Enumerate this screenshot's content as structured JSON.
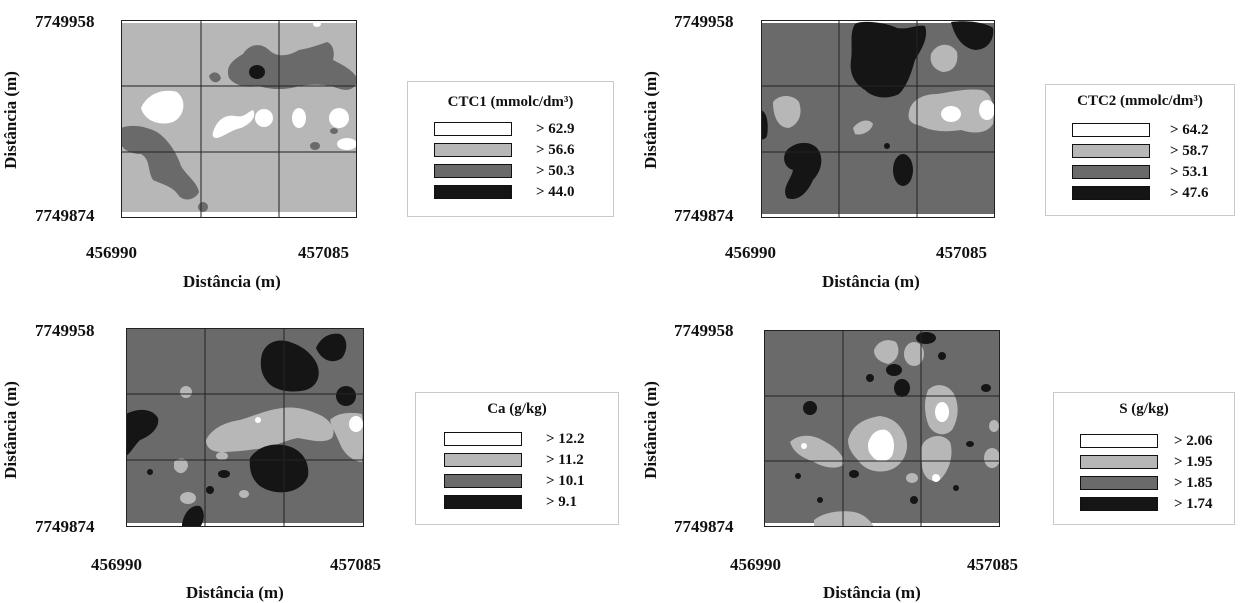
{
  "colors": {
    "class_1": "#ffffff",
    "class_2": "#b7b7b7",
    "class_3": "#6a6a6a",
    "class_4": "#151515",
    "grid": "#222222"
  },
  "panels": [
    {
      "id": "ctc1",
      "y_top": "7749958",
      "y_bottom": "7749874",
      "x_left": "456990",
      "x_right": "457085",
      "xlabel": "Distância (m)",
      "ylabel": "Distância (m)",
      "legend": {
        "title": "CTC1 (mmolc/dm³)",
        "items": [
          {
            "label": "> 62.9"
          },
          {
            "label": "> 56.6"
          },
          {
            "label": "> 50.3"
          },
          {
            "label": "> 44.0"
          }
        ]
      }
    },
    {
      "id": "ctc2",
      "y_top": "7749958",
      "y_bottom": "7749874",
      "x_left": "456990",
      "x_right": "457085",
      "xlabel": "Distância (m)",
      "ylabel": "Distância (m)",
      "legend": {
        "title": "CTC2 (mmolc/dm³)",
        "items": [
          {
            "label": "> 64.2"
          },
          {
            "label": "> 58.7"
          },
          {
            "label": "> 53.1"
          },
          {
            "label": "> 47.6"
          }
        ]
      }
    },
    {
      "id": "ca",
      "y_top": "7749958",
      "y_bottom": "7749874",
      "x_left": "456990",
      "x_right": "457085",
      "xlabel": "Distância (m)",
      "ylabel": "Distância (m)",
      "legend": {
        "title": "Ca (g/kg)",
        "items": [
          {
            "label": "> 12.2"
          },
          {
            "label": "> 11.2"
          },
          {
            "label": "> 10.1"
          },
          {
            "label": "> 9.1"
          }
        ]
      }
    },
    {
      "id": "s",
      "y_top": "7749958",
      "y_bottom": "7749874",
      "x_left": "456990",
      "x_right": "457085",
      "xlabel": "Distância (m)",
      "ylabel": "Distância (m)",
      "legend": {
        "title": "S (g/kg)",
        "items": [
          {
            "label": "> 2.06"
          },
          {
            "label": "> 1.95"
          },
          {
            "label": "> 1.85"
          },
          {
            "label": "> 1.74"
          }
        ]
      }
    }
  ]
}
